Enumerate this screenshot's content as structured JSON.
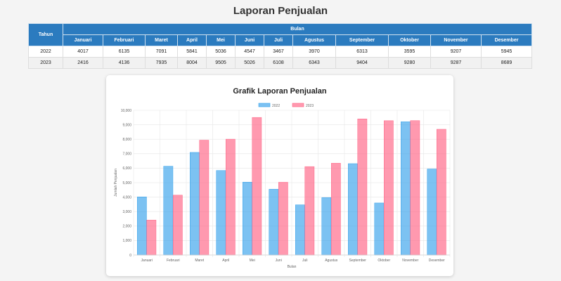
{
  "page_title": "Laporan Penjualan",
  "table": {
    "year_header": "Tahun",
    "group_header": "Bulan",
    "months": [
      "Januari",
      "Februari",
      "Maret",
      "April",
      "Mei",
      "Juni",
      "Juli",
      "Agustus",
      "September",
      "Oktober",
      "November",
      "Desember"
    ],
    "rows": [
      {
        "year": "2022",
        "values": [
          "4017",
          "6135",
          "7091",
          "5841",
          "5036",
          "4547",
          "3467",
          "3970",
          "6313",
          "3595",
          "9207",
          "5945"
        ]
      },
      {
        "year": "2023",
        "values": [
          "2416",
          "4136",
          "7935",
          "8004",
          "9505",
          "5026",
          "6108",
          "6343",
          "9404",
          "9280",
          "9287",
          "8689"
        ]
      }
    ]
  },
  "chart_data": {
    "type": "bar",
    "title": "Grafik Laporan Penjualan",
    "xlabel": "Bulan",
    "ylabel": "Jumlah Penjualan",
    "categories": [
      "Januari",
      "Februari",
      "Maret",
      "April",
      "Mei",
      "Juni",
      "Juli",
      "Agustus",
      "September",
      "Oktober",
      "November",
      "Desember"
    ],
    "series": [
      {
        "name": "2022",
        "values": [
          4017,
          6135,
          7091,
          5841,
          5036,
          4547,
          3467,
          3970,
          6313,
          3595,
          9207,
          5945
        ],
        "color": "#36a2eb"
      },
      {
        "name": "2023",
        "values": [
          2416,
          4136,
          7935,
          8004,
          9505,
          5026,
          6108,
          6343,
          9404,
          9280,
          9287,
          8689
        ],
        "color": "#ff6384"
      }
    ],
    "ylim": [
      0,
      10000
    ],
    "yticks": [
      "0",
      "1,000",
      "2,000",
      "3,000",
      "4,000",
      "5,000",
      "6,000",
      "7,000",
      "8,000",
      "9,000",
      "10,000"
    ],
    "grid": true,
    "legend_position": "top"
  }
}
